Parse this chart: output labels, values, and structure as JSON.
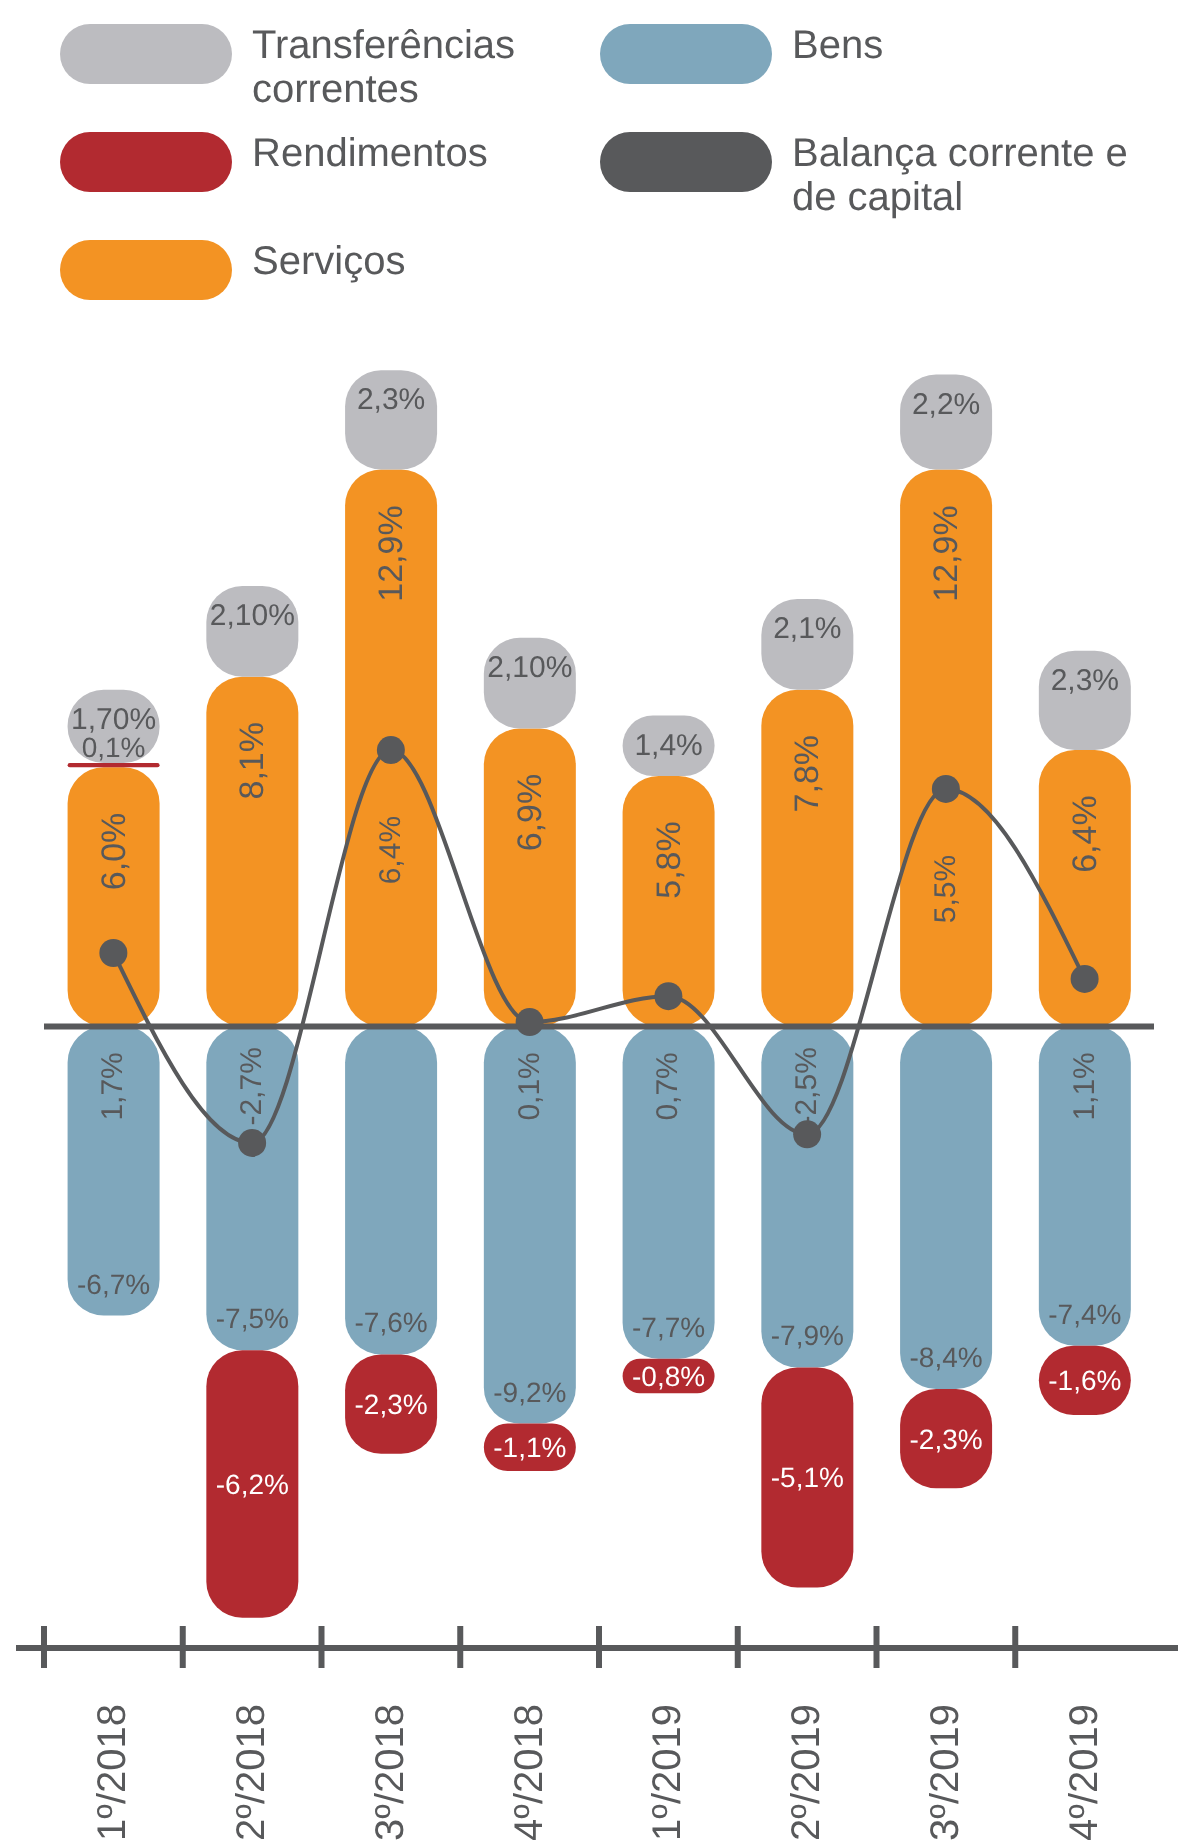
{
  "chart_data": {
    "type": "bar",
    "stacked": true,
    "legend": "top",
    "marker": "circle",
    "categories": [
      "1º/2018",
      "2º/2018",
      "3º/2018",
      "4º/2018",
      "1º/2019",
      "2º/2019",
      "3º/2019",
      "4º/2019"
    ],
    "series": [
      {
        "name": "Bens",
        "color": "#7fa7bc",
        "values": [
          -6.7,
          -7.5,
          -7.6,
          -9.2,
          -7.7,
          -7.9,
          -8.4,
          -7.4
        ],
        "value_labels": [
          "-6,7%",
          "-7,5%",
          "-7,6%",
          "-9,2%",
          "-7,7%",
          "-7,9%",
          "-8,4%",
          "-7,4%"
        ]
      },
      {
        "name": "Serviços",
        "color": "#f39323",
        "values": [
          6.0,
          8.1,
          12.9,
          6.9,
          5.8,
          7.8,
          12.9,
          6.4
        ],
        "value_labels": [
          "6,0%",
          "8,1%",
          "12,9%",
          "6,9%",
          "5,8%",
          "7,8%",
          "12,9%",
          "6,4%"
        ]
      },
      {
        "name": "Rendimentos",
        "color": "#b22a30",
        "values": [
          0.1,
          -6.2,
          -2.3,
          -1.1,
          -0.8,
          -5.1,
          -2.3,
          -1.6
        ],
        "value_labels": [
          "0,1%",
          "-6,2%",
          "-2,3%",
          "-1,1%",
          "-0,8%",
          "-5,1%",
          "-2,3%",
          "-1,6%"
        ]
      },
      {
        "name": "Transferências correntes",
        "color": "#bcbcc0",
        "values": [
          1.7,
          2.1,
          2.3,
          2.1,
          1.4,
          2.1,
          2.2,
          2.3
        ],
        "value_labels": [
          "1,70%",
          "2,10%",
          "2,3%",
          "2,10%",
          "1,4%",
          "2,1%",
          "2,2%",
          "2,3%"
        ]
      },
      {
        "name": "Balança corrente e de capital",
        "type": "line",
        "color": "#58595b",
        "values": [
          1.7,
          -2.7,
          6.4,
          0.1,
          0.7,
          -2.5,
          5.5,
          1.1
        ],
        "value_labels": [
          "1,7%",
          "-2,7%",
          "6,4%",
          "0,1%",
          "0,7%",
          "-2,5%",
          "5,5%",
          "1,1%"
        ]
      }
    ]
  }
}
